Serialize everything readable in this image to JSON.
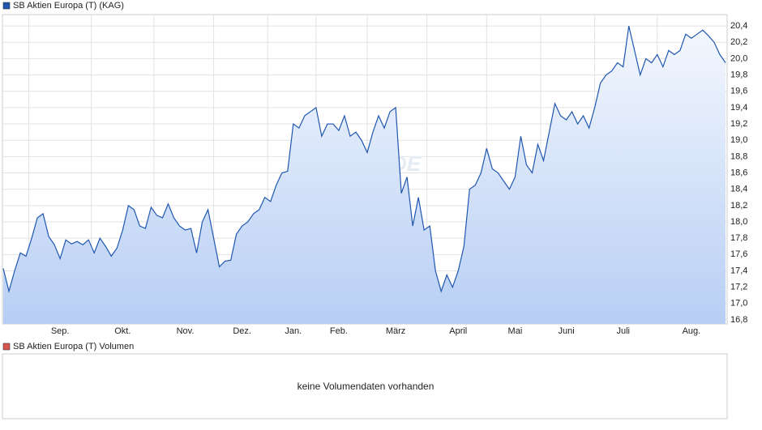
{
  "chart_data": {
    "type": "area",
    "series": [
      {
        "name": "SB Aktien Europa (T) (KAG)",
        "color": "#1f57b0",
        "values": [
          17.43,
          17.15,
          17.4,
          17.62,
          17.58,
          17.8,
          18.05,
          18.1,
          17.82,
          17.72,
          17.55,
          17.78,
          17.73,
          17.76,
          17.72,
          17.78,
          17.62,
          17.8,
          17.7,
          17.58,
          17.68,
          17.9,
          18.2,
          18.15,
          17.95,
          17.92,
          18.18,
          18.08,
          18.05,
          18.22,
          18.05,
          17.95,
          17.9,
          17.92,
          17.62,
          18.0,
          18.15,
          17.8,
          17.45,
          17.52,
          17.53,
          17.85,
          17.95,
          18.0,
          18.1,
          18.15,
          18.3,
          18.25,
          18.45,
          18.6,
          18.62,
          19.2,
          19.15,
          19.3,
          19.35,
          19.4,
          19.05,
          19.2,
          19.2,
          19.12,
          19.3,
          19.05,
          19.1,
          19.0,
          18.85,
          19.1,
          19.3,
          19.15,
          19.35,
          19.4,
          18.35,
          18.55,
          17.95,
          18.3,
          17.9,
          17.95,
          17.4,
          17.15,
          17.35,
          17.2,
          17.4,
          17.7,
          18.4,
          18.45,
          18.6,
          18.9,
          18.65,
          18.6,
          18.5,
          18.4,
          18.55,
          19.05,
          18.7,
          18.6,
          18.95,
          18.75,
          19.1,
          19.45,
          19.3,
          19.25,
          19.35,
          19.2,
          19.3,
          19.15,
          19.4,
          19.7,
          19.8,
          19.85,
          19.95,
          19.9,
          20.4,
          20.1,
          19.8,
          20.0,
          19.95,
          20.05,
          19.9,
          20.1,
          20.05,
          20.1,
          20.3,
          20.25,
          20.3,
          20.35,
          20.28,
          20.2,
          20.05,
          19.95
        ]
      }
    ],
    "categories": [
      null,
      null,
      null,
      null,
      null,
      null,
      null,
      null,
      null,
      null,
      "Sep.",
      null,
      null,
      null,
      null,
      null,
      null,
      null,
      null,
      null,
      null,
      "Okt.",
      null,
      null,
      null,
      null,
      null,
      null,
      null,
      null,
      null,
      null,
      "Nov.",
      null,
      null,
      null,
      null,
      null,
      null,
      null,
      null,
      null,
      "Dez.",
      null,
      null,
      null,
      null,
      null,
      null,
      null,
      null,
      "Jan.",
      null,
      null,
      null,
      null,
      null,
      null,
      null,
      "Feb.",
      null,
      null,
      null,
      null,
      null,
      null,
      null,
      null,
      null,
      "März",
      null,
      null,
      null,
      null,
      null,
      null,
      null,
      null,
      null,
      null,
      "April",
      null,
      null,
      null,
      null,
      null,
      null,
      null,
      null,
      null,
      "Mai",
      null,
      null,
      null,
      null,
      null,
      null,
      null,
      null,
      "Juni",
      null,
      null,
      null,
      null,
      null,
      null,
      null,
      null,
      null,
      "Juli",
      null,
      null,
      null,
      null,
      null,
      null,
      null,
      null,
      null,
      null,
      null,
      "Aug.",
      null,
      null,
      null,
      null,
      null,
      null
    ],
    "ylim": [
      16.75,
      20.54
    ],
    "yticks": [
      {
        "value": 16.8,
        "label": "16,8"
      },
      {
        "value": 17.0,
        "label": "17,0"
      },
      {
        "value": 17.2,
        "label": "17,2"
      },
      {
        "value": 17.4,
        "label": "17,4"
      },
      {
        "value": 17.6,
        "label": "17,6"
      },
      {
        "value": 17.8,
        "label": "17,8"
      },
      {
        "value": 18.0,
        "label": "18,0"
      },
      {
        "value": 18.2,
        "label": "18,2"
      },
      {
        "value": 18.4,
        "label": "18,4"
      },
      {
        "value": 18.6,
        "label": "18,6"
      },
      {
        "value": 18.8,
        "label": "18,8"
      },
      {
        "value": 19.0,
        "label": "19,0"
      },
      {
        "value": 19.2,
        "label": "19,2"
      },
      {
        "value": 19.4,
        "label": "19,4"
      },
      {
        "value": 19.6,
        "label": "19,6"
      },
      {
        "value": 19.8,
        "label": "19,8"
      },
      {
        "value": 20.0,
        "label": "20,0"
      },
      {
        "value": 20.2,
        "label": "20,2"
      },
      {
        "value": 20.4,
        "label": "20,4"
      }
    ],
    "grid": true,
    "watermark": "ARIVA.DE"
  },
  "volume_panel": {
    "legend": "SB Aktien Europa (T) Volumen",
    "color": "#d9534f",
    "message": "keine Volumendaten vorhanden"
  }
}
